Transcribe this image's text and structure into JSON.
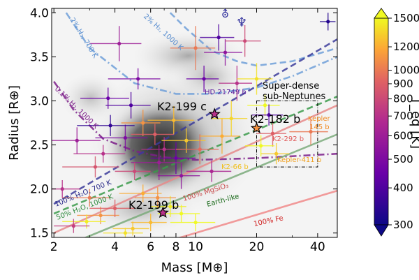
{
  "chart_data": {
    "type": "scatter",
    "xlabel": "Mass [M⊕]",
    "ylabel": "Radius [R⊕]",
    "xscale": "log",
    "xlim": [
      1.95,
      50
    ],
    "ylim": [
      1.45,
      4.05
    ],
    "xticks": [
      2,
      4,
      6,
      8,
      10,
      20,
      40
    ],
    "yticks": [
      1.5,
      2.0,
      2.5,
      3.0,
      3.5,
      4.0
    ],
    "grid": false,
    "named_planets": [
      {
        "name": "K2-199 c",
        "mass": 12.4,
        "radius": 2.85
      },
      {
        "name": "K2-182 b",
        "mass": 20.0,
        "radius": 2.69
      },
      {
        "name": "K2-199 b",
        "mass": 6.9,
        "radius": 1.73
      }
    ],
    "highlighted_planets": [
      {
        "name": "HD 21749 b",
        "mass": 23.0,
        "radius": 2.84
      },
      {
        "name": "Kepler-145 b",
        "mass": 37.0,
        "radius": 2.65
      },
      {
        "name": "K2-292 b",
        "mass": 24.0,
        "radius": 2.63
      },
      {
        "name": "Kepler-411 b",
        "mass": 25.0,
        "radius": 2.4
      },
      {
        "name": "K2-66 b",
        "mass": 21.0,
        "radius": 2.49
      }
    ],
    "region_label": "Super-dense sub-Neptunes",
    "region_box": {
      "mass": [
        20,
        40
      ],
      "radius": [
        2.25,
        3.0
      ]
    },
    "model_curves": [
      {
        "name": "2% H₂, 700 K",
        "color": "#6f9fd8",
        "dash": "dashdot",
        "x": [
          2.3,
          3.0,
          5,
          8,
          12,
          20,
          30,
          50
        ],
        "y": [
          4.0,
          3.6,
          3.2,
          3.08,
          3.08,
          3.15,
          3.28,
          3.5
        ]
      },
      {
        "name": "2% H₂, 1000 K",
        "color": "#6f9fd8",
        "dash": "dashed",
        "x": [
          7.5,
          9,
          12,
          16,
          20,
          30,
          50
        ],
        "y": [
          4.0,
          3.82,
          3.57,
          3.45,
          3.4,
          3.45,
          3.6
        ]
      },
      {
        "name": "0.1% H₂, 1000 K",
        "color": "#7d1f8a",
        "dash": "dashdot",
        "x": [
          2.0,
          2.5,
          3.5,
          5,
          7,
          10,
          20,
          50
        ],
        "y": [
          3.22,
          2.9,
          2.57,
          2.43,
          2.36,
          2.33,
          2.35,
          2.4
        ]
      },
      {
        "name": "100% H₂O, 700 K",
        "color": "#3b3b9a",
        "dash": "dashed",
        "x": [
          2.0,
          50
        ],
        "y": [
          1.83,
          3.7
        ]
      },
      {
        "name": "50% H₂O, 1000 K",
        "color": "#3a9a4a",
        "dash": "dashed",
        "x": [
          2.0,
          50
        ],
        "y": [
          1.72,
          3.05
        ]
      },
      {
        "name": "100% MgSiO₃",
        "color": "#e68a8a",
        "dash": "solid",
        "x": [
          2.0,
          50
        ],
        "y": [
          1.5,
          2.95
        ]
      },
      {
        "name": "Earth-like",
        "color": "#7aaa7a",
        "dash": "solid",
        "x": [
          2.0,
          50
        ],
        "y": [
          1.3,
          2.62
        ]
      },
      {
        "name": "100% Fe",
        "color": "#f08a8a",
        "dash": "solid",
        "x": [
          2.0,
          50
        ],
        "y": [
          1.02,
          1.98
        ]
      }
    ],
    "points": [
      {
        "m": 5.5,
        "r": 2.75,
        "t": 1100,
        "em": 1.2,
        "er": 0.15
      },
      {
        "m": 6.3,
        "r": 2.62,
        "t": 900,
        "em": 1.5,
        "er": 0.12
      },
      {
        "m": 7.0,
        "r": 2.45,
        "t": 700,
        "em": 1.6,
        "er": 0.14
      },
      {
        "m": 8.0,
        "r": 2.35,
        "t": 450,
        "em": 2.0,
        "er": 0.18
      },
      {
        "m": 6.6,
        "r": 2.3,
        "t": 600,
        "em": 1.8,
        "er": 0.2
      },
      {
        "m": 5.0,
        "r": 2.2,
        "t": 800,
        "em": 1.0,
        "er": 0.1
      },
      {
        "m": 9.0,
        "r": 2.55,
        "t": 1300,
        "em": 2.2,
        "er": 0.14
      },
      {
        "m": 4.5,
        "r": 2.58,
        "t": 500,
        "em": 1.3,
        "er": 0.15
      },
      {
        "m": 7.8,
        "r": 2.78,
        "t": 1250,
        "em": 2.0,
        "er": 0.16
      },
      {
        "m": 10.5,
        "r": 2.45,
        "t": 950,
        "em": 2.5,
        "er": 0.17
      },
      {
        "m": 3.5,
        "r": 2.4,
        "t": 700,
        "em": 1.0,
        "er": 0.1
      },
      {
        "m": 12.0,
        "r": 2.2,
        "t": 650,
        "em": 3.0,
        "er": 0.12
      },
      {
        "m": 4.8,
        "r": 2.95,
        "t": 400,
        "em": 1.2,
        "er": 0.15
      },
      {
        "m": 3.8,
        "r": 2.72,
        "t": 350,
        "em": 1.2,
        "er": 0.12
      },
      {
        "m": 8.5,
        "r": 2.15,
        "t": 550,
        "em": 2.0,
        "er": 0.15
      },
      {
        "m": 5.2,
        "r": 3.25,
        "t": 500,
        "em": 1.5,
        "er": 0.12
      },
      {
        "m": 4.2,
        "r": 3.65,
        "t": 600,
        "em": 1.2,
        "er": 0.2
      },
      {
        "m": 3.7,
        "r": 3.03,
        "t": 450,
        "em": 1.0,
        "er": 0.12
      },
      {
        "m": 10.0,
        "r": 3.6,
        "t": 1000,
        "em": 2.5,
        "er": 0.25
      },
      {
        "m": 14.0,
        "r": 3.55,
        "t": 550,
        "em": 3.0,
        "er": 0.15
      },
      {
        "m": 13.0,
        "r": 3.72,
        "t": 400,
        "em": 2.5,
        "er": 0.15
      },
      {
        "m": 16.0,
        "r": 3.2,
        "t": 700,
        "em": 3.0,
        "er": 0.2
      },
      {
        "m": 20.0,
        "r": 3.25,
        "t": 1400,
        "em": 4.0,
        "er": 0.18
      },
      {
        "m": 11.0,
        "r": 3.25,
        "t": 450,
        "em": 2.0,
        "er": 0.15
      },
      {
        "m": 17.5,
        "r": 3.68,
        "t": 800,
        "em": 3.5,
        "er": 0.18
      },
      {
        "m": 45.0,
        "r": 3.9,
        "t": 330,
        "em": 4.0,
        "er": 0.1
      },
      {
        "m": 15.0,
        "r": 2.8,
        "t": 1350,
        "em": 3.0,
        "er": 0.2
      },
      {
        "m": 4.9,
        "r": 1.55,
        "t": 1300,
        "em": 1.0,
        "er": 0.08
      },
      {
        "m": 6.0,
        "r": 1.62,
        "t": 1250,
        "em": 1.2,
        "er": 0.1
      },
      {
        "m": 3.4,
        "r": 1.7,
        "t": 1100,
        "em": 0.8,
        "er": 0.1
      },
      {
        "m": 7.5,
        "r": 1.8,
        "t": 1450,
        "em": 1.5,
        "er": 0.12
      },
      {
        "m": 4.0,
        "r": 1.78,
        "t": 900,
        "em": 1.0,
        "er": 0.1
      },
      {
        "m": 2.9,
        "r": 1.63,
        "t": 1450,
        "em": 0.7,
        "er": 0.08
      },
      {
        "m": 5.5,
        "r": 1.95,
        "t": 1200,
        "em": 1.3,
        "er": 0.1
      },
      {
        "m": 8.5,
        "r": 1.72,
        "t": 1500,
        "em": 2.0,
        "er": 0.1
      },
      {
        "m": 4.5,
        "r": 1.5,
        "t": 1400,
        "em": 1.0,
        "er": 0.06
      },
      {
        "m": 6.5,
        "r": 1.9,
        "t": 1100,
        "em": 1.5,
        "er": 0.12
      },
      {
        "m": 3.0,
        "r": 1.9,
        "t": 1000,
        "em": 0.8,
        "er": 0.1
      },
      {
        "m": 2.5,
        "r": 1.58,
        "t": 750,
        "em": 0.5,
        "er": 0.08
      },
      {
        "m": 10.0,
        "r": 1.62,
        "t": 1500,
        "em": 2.5,
        "er": 0.1
      },
      {
        "m": 22.0,
        "r": 2.95,
        "t": 1500,
        "em": 4.0,
        "er": 0.12
      },
      {
        "m": 24.0,
        "r": 2.63,
        "t": 900,
        "em": 4.0,
        "er": 0.15
      },
      {
        "m": 25.0,
        "r": 2.4,
        "t": 1300,
        "em": 4.0,
        "er": 0.12
      },
      {
        "m": 21.0,
        "r": 2.49,
        "t": 1500,
        "em": 3.5,
        "er": 0.12
      },
      {
        "m": 37.0,
        "r": 2.65,
        "t": 1000,
        "em": 8.0,
        "er": 0.15
      },
      {
        "m": 23.0,
        "r": 2.84,
        "t": 400,
        "em": 4.0,
        "er": 0.12
      },
      {
        "m": 2.2,
        "r": 2.0,
        "t": 700,
        "em": 0.5,
        "er": 0.1
      },
      {
        "m": 2.6,
        "r": 2.55,
        "t": 600,
        "em": 0.8,
        "er": 0.15
      },
      {
        "m": 3.2,
        "r": 2.25,
        "t": 850,
        "em": 1.0,
        "er": 0.12
      },
      {
        "m": 13.5,
        "r": 2.6,
        "t": 1200,
        "em": 3.0,
        "er": 0.2
      }
    ]
  },
  "labels": {
    "planet_k2_199c": "K2-199 c",
    "planet_k2_182b": "K2-182 b",
    "planet_k2_199b": "K2-199 b",
    "hd21749": "HD 21749 b",
    "kepler145_line1": "Kepler",
    "kepler145_line2": "145 b",
    "k2_292": "K2-292 b",
    "kepler411": "Kepler-411 b",
    "k2_66": "K2-66 b",
    "region_line1": "Super-dense",
    "region_line2": "sub-Neptunes",
    "curve_2h2_700": "2% H₂, 700 K",
    "curve_2h2_1000": "2% H₂, 1000 K",
    "curve_01h2_1000": "0.1% H₂, 1000 K",
    "curve_h2o_700": "100% H₂O, 700 K",
    "curve_h2o50_1000": "50% H₂O, 1000 K",
    "curve_mgsio3": "100% MgSiO₃",
    "curve_earth": "Earth-like",
    "curve_fe": "100% Fe",
    "symbol_neptune": "♆",
    "symbol_uranus": "⛢"
  },
  "axes": {
    "xlabel": "Mass [M⊕]",
    "ylabel": "Radius [R⊕]",
    "xticks": [
      "2",
      "4",
      "6",
      "8",
      "10",
      "20",
      "40"
    ],
    "yticks": [
      "1.5",
      "2.0",
      "2.5",
      "3.0",
      "3.5",
      "4.0"
    ]
  },
  "colorbar": {
    "label": "T_eq [K]",
    "ticks": [
      "300",
      "400",
      "500",
      "600",
      "700",
      "800",
      "900",
      "1000",
      "1200",
      "1500"
    ],
    "min": 300,
    "max": 1500,
    "scale": "log"
  },
  "colors": {
    "teq_low": "#0d0887",
    "teq_mid": "#b12a90",
    "teq_high": "#f0f921"
  }
}
